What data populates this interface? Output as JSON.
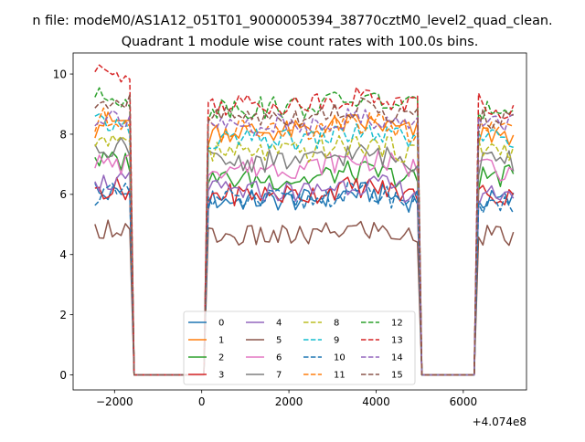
{
  "suptitle": "n file: modeM0/AS1A12_051T01_9000005394_38770cztM0_level2_quad_clean.",
  "chart_data": {
    "type": "line",
    "title": "Quadrant 1 module wise count rates with 100.0s bins.",
    "xlabel": "",
    "ylabel": "",
    "x_offset_label": "+4.074e8",
    "xlim": [
      -2950,
      7450
    ],
    "ylim": [
      -0.5,
      10.7
    ],
    "xticks": [
      -2000,
      0,
      2000,
      4000,
      6000
    ],
    "xtick_labels": [
      "−2000",
      "0",
      "2000",
      "4000",
      "6000"
    ],
    "yticks": [
      0,
      2,
      4,
      6,
      8,
      10
    ],
    "ytick_labels": [
      "0",
      "2",
      "4",
      "6",
      "8",
      "10"
    ],
    "grid": false,
    "legend": {
      "placement": "lower-center",
      "columns": 4
    },
    "segments": [
      {
        "start": -2450,
        "end": -1650
      },
      {
        "start": 150,
        "end": 4950
      },
      {
        "start": 6350,
        "end": 7150
      }
    ],
    "x_range": {
      "start": -2450,
      "end": 7150,
      "step": 100
    },
    "series": [
      {
        "name": "0",
        "color": "#1f77b4",
        "dash": "solid",
        "levels": [
          6.0,
          5.8,
          5.8
        ]
      },
      {
        "name": "1",
        "color": "#ff7f0e",
        "dash": "solid",
        "levels": [
          8.4,
          8.1,
          8.0
        ]
      },
      {
        "name": "2",
        "color": "#2ca02c",
        "dash": "solid",
        "levels": [
          7.1,
          6.5,
          6.6
        ]
      },
      {
        "name": "3",
        "color": "#d62728",
        "dash": "solid",
        "levels": [
          6.2,
          6.0,
          6.0
        ]
      },
      {
        "name": "4",
        "color": "#9467bd",
        "dash": "solid",
        "levels": [
          6.4,
          6.1,
          6.1
        ]
      },
      {
        "name": "5",
        "color": "#8c564b",
        "dash": "solid",
        "levels": [
          4.9,
          4.6,
          4.6
        ]
      },
      {
        "name": "6",
        "color": "#e377c2",
        "dash": "solid",
        "levels": [
          7.0,
          6.9,
          6.8
        ]
      },
      {
        "name": "7",
        "color": "#7f7f7f",
        "dash": "solid",
        "levels": [
          7.6,
          7.1,
          7.1
        ]
      },
      {
        "name": "8",
        "color": "#bcbd22",
        "dash": "dashed",
        "levels": [
          7.9,
          7.4,
          7.5
        ]
      },
      {
        "name": "9",
        "color": "#17becf",
        "dash": "dashed",
        "levels": [
          8.3,
          7.8,
          7.9
        ]
      },
      {
        "name": "10",
        "color": "#1f77b4",
        "dash": "dashed",
        "levels": [
          6.0,
          5.8,
          5.7
        ]
      },
      {
        "name": "11",
        "color": "#ff7f0e",
        "dash": "dashed",
        "levels": [
          8.5,
          8.1,
          8.1
        ]
      },
      {
        "name": "12",
        "color": "#2ca02c",
        "dash": "dashed",
        "levels": [
          9.2,
          8.9,
          8.8
        ]
      },
      {
        "name": "13",
        "color": "#d62728",
        "dash": "dashed",
        "levels": [
          10.0,
          9.0,
          8.9
        ]
      },
      {
        "name": "14",
        "color": "#9467bd",
        "dash": "dashed",
        "levels": [
          8.6,
          8.3,
          8.3
        ]
      },
      {
        "name": "15",
        "color": "#8c564b",
        "dash": "dashed",
        "levels": [
          9.0,
          8.6,
          8.5
        ]
      }
    ]
  }
}
